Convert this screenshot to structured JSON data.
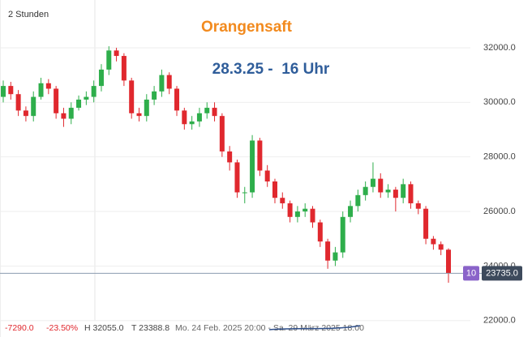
{
  "chart_data": {
    "type": "candlestick",
    "interval": "2 Stunden",
    "title": "Orangensaft",
    "subtitle": "28.3.25 -  16 Uhr",
    "up_color": "#2eae4b",
    "down_color": "#e0282e",
    "open": [
      30200,
      30600,
      30300,
      29700,
      29500,
      30200,
      30700,
      30500,
      29600,
      29400,
      29800,
      30100,
      30200,
      30600,
      31200,
      31900,
      31700,
      30800,
      29600,
      29500,
      30100,
      30400,
      31000,
      30500,
      29700,
      29200,
      29300,
      29600,
      29800,
      29500,
      28200,
      27800,
      26700,
      26700,
      28600,
      27500,
      27100,
      26500,
      26300,
      25800,
      26000,
      26100,
      25600,
      24900,
      24200,
      24500,
      25800,
      26200,
      26600,
      26900,
      27200,
      26700,
      26800,
      26500,
      27000,
      26300,
      26100,
      25000,
      24800,
      24600
    ],
    "high": [
      30800,
      30750,
      30450,
      29850,
      30400,
      30900,
      30850,
      30600,
      29800,
      30000,
      30250,
      30400,
      30800,
      31400,
      32055,
      32000,
      31800,
      30900,
      29800,
      30300,
      30600,
      31200,
      31100,
      30600,
      29800,
      29500,
      29800,
      30000,
      30000,
      29600,
      28400,
      27900,
      26900,
      28800,
      28700,
      27700,
      27200,
      26700,
      26400,
      26200,
      26300,
      26200,
      25700,
      25000,
      24700,
      26000,
      26400,
      26800,
      27100,
      27800,
      27400,
      27000,
      26900,
      27200,
      27100,
      26400,
      26200,
      25100,
      24900,
      24650
    ],
    "low": [
      30000,
      30100,
      29500,
      29300,
      29300,
      30100,
      30300,
      29400,
      29100,
      29200,
      29700,
      29900,
      30000,
      30400,
      31000,
      31500,
      30600,
      29400,
      29300,
      29300,
      29900,
      30200,
      30300,
      29500,
      29000,
      29000,
      29100,
      29400,
      29300,
      28000,
      27500,
      26500,
      26300,
      26500,
      27300,
      26900,
      26300,
      26100,
      25600,
      25600,
      25800,
      25400,
      24700,
      23900,
      24000,
      24300,
      25600,
      26000,
      26400,
      26700,
      26500,
      26500,
      26000,
      26300,
      26100,
      25900,
      24800,
      24600,
      24400,
      23388.8
    ],
    "close": [
      30600,
      30300,
      29700,
      29500,
      30200,
      30700,
      30500,
      29600,
      29400,
      29800,
      30100,
      30200,
      30600,
      31200,
      31900,
      31700,
      30800,
      29600,
      29500,
      30100,
      30400,
      31000,
      30500,
      29700,
      29200,
      29300,
      29600,
      29800,
      29500,
      28200,
      27800,
      26700,
      26700,
      28600,
      27500,
      27100,
      26500,
      26300,
      25800,
      26000,
      26100,
      25600,
      24900,
      24200,
      24500,
      25800,
      26200,
      26600,
      26900,
      27200,
      26700,
      26800,
      26500,
      27000,
      26300,
      26100,
      25000,
      24800,
      24600,
      23735
    ],
    "ylim": [
      21400,
      33750
    ],
    "yticks": [
      {
        "value": 22000,
        "label": "22000.0"
      },
      {
        "value": 24000,
        "label": "24000.0"
      },
      {
        "value": 26000,
        "label": "26000.0"
      },
      {
        "value": 28000,
        "label": "28000.0"
      },
      {
        "value": 30000,
        "label": "30000.0"
      },
      {
        "value": 32000,
        "label": "32000.0"
      }
    ],
    "grid": true,
    "current_price": {
      "value": 23735,
      "label": "23735.0"
    },
    "badge": "10",
    "footer": {
      "change": "-7290.0",
      "change_pct": "-23.50%",
      "high": "H 32055.0",
      "low": "T 23388.8",
      "range": "Mo. 24 Feb. 2025 20:00 - Sa. 29 März 2025 18:00"
    }
  }
}
